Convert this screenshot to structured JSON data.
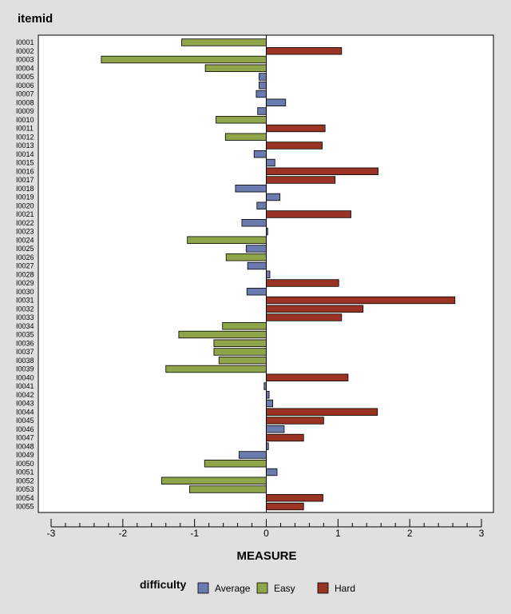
{
  "chart_data": {
    "type": "bar",
    "orientation": "horizontal",
    "title": "itemid",
    "xlabel": "MEASURE",
    "xlim": [
      -3,
      3
    ],
    "xticks": [
      -3,
      -2,
      -1,
      0,
      1,
      2,
      3
    ],
    "grid": false,
    "legend_position": "bottom",
    "legend_title": "difficulty",
    "legend": [
      {
        "name": "Average",
        "color": "#6b7bb0"
      },
      {
        "name": "Easy",
        "color": "#8fa54a"
      },
      {
        "name": "Hard",
        "color": "#9b3324"
      }
    ],
    "items": [
      {
        "id": "I0001",
        "value": -1.18,
        "difficulty": "Easy"
      },
      {
        "id": "I0002",
        "value": 1.05,
        "difficulty": "Hard"
      },
      {
        "id": "I0003",
        "value": -2.3,
        "difficulty": "Easy"
      },
      {
        "id": "I0004",
        "value": -0.85,
        "difficulty": "Easy"
      },
      {
        "id": "I0005",
        "value": -0.1,
        "difficulty": "Average"
      },
      {
        "id": "I0006",
        "value": -0.1,
        "difficulty": "Average"
      },
      {
        "id": "I0007",
        "value": -0.14,
        "difficulty": "Average"
      },
      {
        "id": "I0008",
        "value": 0.27,
        "difficulty": "Average"
      },
      {
        "id": "I0009",
        "value": -0.12,
        "difficulty": "Average"
      },
      {
        "id": "I0010",
        "value": -0.7,
        "difficulty": "Easy"
      },
      {
        "id": "I0011",
        "value": 0.82,
        "difficulty": "Hard"
      },
      {
        "id": "I0012",
        "value": -0.57,
        "difficulty": "Easy"
      },
      {
        "id": "I0013",
        "value": 0.78,
        "difficulty": "Hard"
      },
      {
        "id": "I0014",
        "value": -0.17,
        "difficulty": "Average"
      },
      {
        "id": "I0015",
        "value": 0.12,
        "difficulty": "Average"
      },
      {
        "id": "I0016",
        "value": 1.56,
        "difficulty": "Hard"
      },
      {
        "id": "I0017",
        "value": 0.96,
        "difficulty": "Hard"
      },
      {
        "id": "I0018",
        "value": -0.43,
        "difficulty": "Average"
      },
      {
        "id": "I0019",
        "value": 0.19,
        "difficulty": "Average"
      },
      {
        "id": "I0020",
        "value": -0.13,
        "difficulty": "Average"
      },
      {
        "id": "I0021",
        "value": 1.18,
        "difficulty": "Hard"
      },
      {
        "id": "I0022",
        "value": -0.34,
        "difficulty": "Average"
      },
      {
        "id": "I0023",
        "value": 0.02,
        "difficulty": "Average"
      },
      {
        "id": "I0024",
        "value": -1.1,
        "difficulty": "Easy"
      },
      {
        "id": "I0025",
        "value": -0.28,
        "difficulty": "Average"
      },
      {
        "id": "I0026",
        "value": -0.56,
        "difficulty": "Easy"
      },
      {
        "id": "I0027",
        "value": -0.26,
        "difficulty": "Average"
      },
      {
        "id": "I0028",
        "value": 0.05,
        "difficulty": "Average"
      },
      {
        "id": "I0029",
        "value": 1.01,
        "difficulty": "Hard"
      },
      {
        "id": "I0030",
        "value": -0.27,
        "difficulty": "Average"
      },
      {
        "id": "I0031",
        "value": 2.63,
        "difficulty": "Hard"
      },
      {
        "id": "I0032",
        "value": 1.35,
        "difficulty": "Hard"
      },
      {
        "id": "I0033",
        "value": 1.05,
        "difficulty": "Hard"
      },
      {
        "id": "I0034",
        "value": -0.61,
        "difficulty": "Easy"
      },
      {
        "id": "I0035",
        "value": -1.22,
        "difficulty": "Easy"
      },
      {
        "id": "I0036",
        "value": -0.73,
        "difficulty": "Easy"
      },
      {
        "id": "I0037",
        "value": -0.73,
        "difficulty": "Easy"
      },
      {
        "id": "I0038",
        "value": -0.66,
        "difficulty": "Easy"
      },
      {
        "id": "I0039",
        "value": -1.4,
        "difficulty": "Easy"
      },
      {
        "id": "I0040",
        "value": 1.14,
        "difficulty": "Hard"
      },
      {
        "id": "I0041",
        "value": -0.03,
        "difficulty": "Average"
      },
      {
        "id": "I0042",
        "value": 0.04,
        "difficulty": "Average"
      },
      {
        "id": "I0043",
        "value": 0.09,
        "difficulty": "Average"
      },
      {
        "id": "I0044",
        "value": 1.55,
        "difficulty": "Hard"
      },
      {
        "id": "I0045",
        "value": 0.8,
        "difficulty": "Hard"
      },
      {
        "id": "I0046",
        "value": 0.25,
        "difficulty": "Average"
      },
      {
        "id": "I0047",
        "value": 0.52,
        "difficulty": "Hard"
      },
      {
        "id": "I0048",
        "value": 0.03,
        "difficulty": "Average"
      },
      {
        "id": "I0049",
        "value": -0.38,
        "difficulty": "Average"
      },
      {
        "id": "I0050",
        "value": -0.86,
        "difficulty": "Easy"
      },
      {
        "id": "I0051",
        "value": 0.15,
        "difficulty": "Average"
      },
      {
        "id": "I0052",
        "value": -1.46,
        "difficulty": "Easy"
      },
      {
        "id": "I0053",
        "value": -1.07,
        "difficulty": "Easy"
      },
      {
        "id": "I0054",
        "value": 0.79,
        "difficulty": "Hard"
      },
      {
        "id": "I0055",
        "value": 0.52,
        "difficulty": "Hard"
      }
    ]
  }
}
